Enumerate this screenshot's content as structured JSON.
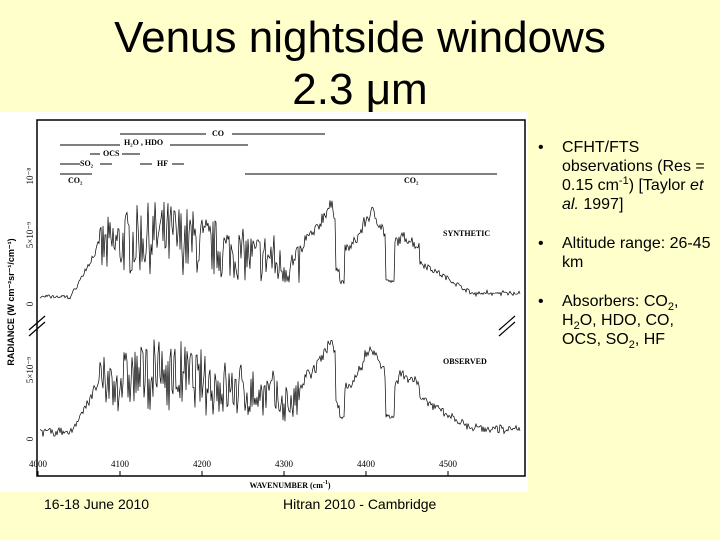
{
  "slide": {
    "title_line1": "Venus nightside windows",
    "title_line2": "2.3 μm",
    "footer_left": "16-18 June 2010",
    "footer_center": "Hitran 2010 - Cambridge"
  },
  "bullets": [
    {
      "parts": [
        {
          "t": "CFHT/FTS observations (Res = 0.15 cm"
        },
        {
          "t": "-1",
          "s": "sup"
        },
        {
          "t": ") [Taylor "
        },
        {
          "t": "et al.",
          "s": "i"
        },
        {
          "t": " 1997]"
        }
      ]
    },
    {
      "parts": [
        {
          "t": "Altitude range: 26-45 km"
        }
      ]
    },
    {
      "parts": [
        {
          "t": "Absorbers: CO"
        },
        {
          "t": "2",
          "s": "sub"
        },
        {
          "t": ", H"
        },
        {
          "t": "2",
          "s": "sub"
        },
        {
          "t": "O, HDO, CO, OCS, SO"
        },
        {
          "t": "2",
          "s": "sub"
        },
        {
          "t": ", HF"
        }
      ]
    }
  ],
  "figure": {
    "xlabel": "WAVENUMBER (cm⁻¹)",
    "xlabel_main": "WAVENUMBER (cm",
    "xlabel_sup": "-1",
    "xlabel_end": ")",
    "ylabel": "RADIANCE (W cm⁻²sr⁻¹/cm⁻¹)",
    "xticks": [
      "4000",
      "4100",
      "4200",
      "4300",
      "4400",
      "4500"
    ],
    "top_yticks": [
      "0",
      "5×10⁻⁹",
      "10⁻⁸"
    ],
    "bottom_yticks": [
      "0",
      "5×10⁻⁹"
    ],
    "top_panel_label": "SYNTHETIC",
    "bottom_panel_label": "OBSERVED",
    "absorber_labels": {
      "co": "CO",
      "h2o_hdo": "H₂O , HDO",
      "ocs": "OCS",
      "so2": "SO₂",
      "hf": "HF",
      "co2_left": "CO₂",
      "co2_right": "CO₂"
    },
    "colors": {
      "line": "#000000",
      "panel": "#ffffff",
      "background": "#ffffcc"
    }
  }
}
